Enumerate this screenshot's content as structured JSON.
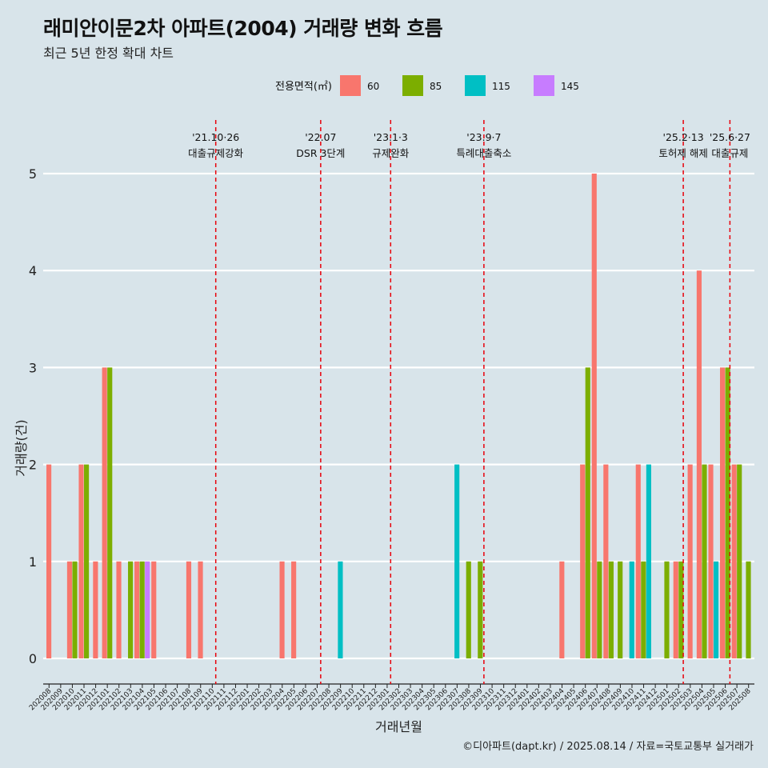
{
  "title": "래미안이문2차 아파트(2004) 거래량 변화 흐름",
  "subtitle": "최근 5년 한정 확대 차트",
  "caption": "©디아파트(dapt.kr) / 2025.08.14 / 자료=국토교통부 실거래가",
  "chart_data": {
    "type": "bar",
    "xlabel": "거래년월",
    "ylabel": "거래량(건)",
    "ylim": [
      -0.2,
      5.45
    ],
    "yticks": [
      0,
      1,
      2,
      3,
      4,
      5
    ],
    "grid": "horizontal",
    "legend": {
      "title": "전용면적(㎡)",
      "position": "top",
      "entries": [
        {
          "name": "60",
          "color": "#f8766d"
        },
        {
          "name": "85",
          "color": "#7cae00"
        },
        {
          "name": "115",
          "color": "#00bfc4"
        },
        {
          "name": "145",
          "color": "#c77cff"
        }
      ]
    },
    "categories": [
      "202008",
      "202009",
      "202010",
      "202011",
      "202012",
      "202101",
      "202102",
      "202103",
      "202104",
      "202105",
      "202106",
      "202107",
      "202108",
      "202109",
      "202110",
      "202111",
      "202112",
      "202201",
      "202202",
      "202203",
      "202204",
      "202205",
      "202206",
      "202207",
      "202208",
      "202209",
      "202210",
      "202211",
      "202212",
      "202301",
      "202302",
      "202303",
      "202304",
      "202305",
      "202306",
      "202307",
      "202308",
      "202309",
      "202310",
      "202311",
      "202312",
      "202401",
      "202402",
      "202403",
      "202404",
      "202405",
      "202406",
      "202407",
      "202408",
      "202409",
      "202410",
      "202411",
      "202412",
      "202501",
      "202502",
      "202503",
      "202504",
      "202505",
      "202506",
      "202507",
      "202508"
    ],
    "series": [
      {
        "name": "60",
        "color": "#f8766d",
        "values": [
          2,
          0,
          1,
          2,
          1,
          3,
          1,
          0,
          1,
          1,
          0,
          0,
          1,
          1,
          0,
          0,
          0,
          0,
          0,
          0,
          1,
          1,
          0,
          0,
          0,
          0,
          0,
          0,
          0,
          0,
          0,
          0,
          0,
          0,
          0,
          0,
          0,
          0,
          0,
          0,
          0,
          0,
          0,
          0,
          1,
          0,
          2,
          5,
          2,
          0,
          0,
          2,
          0,
          0,
          1,
          2,
          4,
          2,
          3,
          2,
          0
        ]
      },
      {
        "name": "85",
        "color": "#7cae00",
        "values": [
          0,
          0,
          1,
          2,
          0,
          3,
          0,
          1,
          1,
          0,
          0,
          0,
          0,
          0,
          0,
          0,
          0,
          0,
          0,
          0,
          0,
          0,
          0,
          0,
          0,
          0,
          0,
          0,
          0,
          0,
          0,
          0,
          0,
          0,
          0,
          0,
          1,
          1,
          0,
          0,
          0,
          0,
          0,
          0,
          0,
          0,
          3,
          1,
          1,
          1,
          0,
          1,
          0,
          1,
          1,
          0,
          2,
          0,
          3,
          2,
          1
        ]
      },
      {
        "name": "115",
        "color": "#00bfc4",
        "values": [
          0,
          0,
          0,
          0,
          0,
          0,
          0,
          0,
          0,
          0,
          0,
          0,
          0,
          0,
          0,
          0,
          0,
          0,
          0,
          0,
          0,
          0,
          0,
          0,
          0,
          1,
          0,
          0,
          0,
          0,
          0,
          0,
          0,
          0,
          0,
          2,
          0,
          0,
          0,
          0,
          0,
          0,
          0,
          0,
          0,
          0,
          0,
          0,
          0,
          0,
          1,
          2,
          0,
          0,
          0,
          0,
          0,
          1,
          0,
          0,
          0
        ]
      },
      {
        "name": "145",
        "color": "#c77cff",
        "values": [
          0,
          0,
          0,
          0,
          0,
          0,
          0,
          0,
          1,
          0,
          0,
          0,
          0,
          0,
          0,
          0,
          0,
          0,
          0,
          0,
          0,
          0,
          0,
          0,
          0,
          0,
          0,
          0,
          0,
          0,
          0,
          0,
          0,
          0,
          0,
          0,
          0,
          0,
          0,
          0,
          0,
          0,
          0,
          0,
          0,
          0,
          0,
          0,
          0,
          0,
          0,
          0,
          0,
          0,
          0,
          0,
          0,
          0,
          0,
          0,
          0
        ]
      }
    ],
    "events": [
      {
        "date": "'21.10·26",
        "label": "대출규제강화",
        "month_index": 14.3
      },
      {
        "date": "'22.07",
        "label": "DSR 3단계",
        "month_index": 23.3
      },
      {
        "date": "'23.1·3",
        "label": "규제완화",
        "month_index": 29.3
      },
      {
        "date": "'23.9·7",
        "label": "특례대출축소",
        "month_index": 37.3
      },
      {
        "date": "'25.2·13",
        "label": "토허제 해제",
        "month_index": 54.4
      },
      {
        "date": "'25.6·27",
        "label": "대출규제",
        "month_index": 58.4
      }
    ],
    "event_line_color": "#e8000b"
  }
}
